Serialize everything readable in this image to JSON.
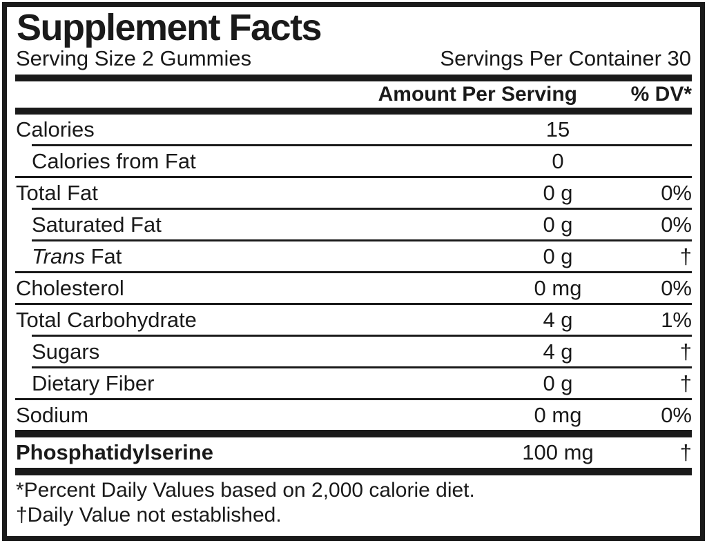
{
  "label": {
    "title": "Supplement Facts",
    "serving": {
      "size": "Serving Size 2 Gummies",
      "per_container": "Servings Per Container 30"
    },
    "columns": {
      "amount": "Amount Per Serving",
      "dv": "% DV*"
    },
    "rows": [
      {
        "name": "Calories",
        "amount": "15",
        "dv": "",
        "indent": false
      },
      {
        "name": "Calories from Fat",
        "amount": "0",
        "dv": "",
        "indent": true
      },
      {
        "name": "Total Fat",
        "amount": "0 g",
        "dv": "0%",
        "indent": false
      },
      {
        "name": "Saturated Fat",
        "amount": "0 g",
        "dv": "0%",
        "indent": true
      },
      {
        "name_italic": "Trans",
        "name_rest": " Fat",
        "amount": "0 g",
        "dv": "†",
        "indent": true
      },
      {
        "name": "Cholesterol",
        "amount": "0 mg",
        "dv": "0%",
        "indent": false
      },
      {
        "name": "Total Carbohydrate",
        "amount": "4 g",
        "dv": "1%",
        "indent": false
      },
      {
        "name": "Sugars",
        "amount": "4 g",
        "dv": "†",
        "indent": true
      },
      {
        "name": "Dietary Fiber",
        "amount": "0 g",
        "dv": "†",
        "indent": true
      },
      {
        "name": "Sodium",
        "amount": "0 mg",
        "dv": "0%",
        "indent": false
      }
    ],
    "supplement_row": {
      "name": "Phosphatidylserine",
      "amount": "100 mg",
      "dv": "†"
    },
    "footnotes": [
      "*Percent Daily Values based on 2,000 calorie diet.",
      "†Daily Value not established."
    ],
    "colors": {
      "ink": "#1a1a1a",
      "background": "#ffffff"
    }
  }
}
